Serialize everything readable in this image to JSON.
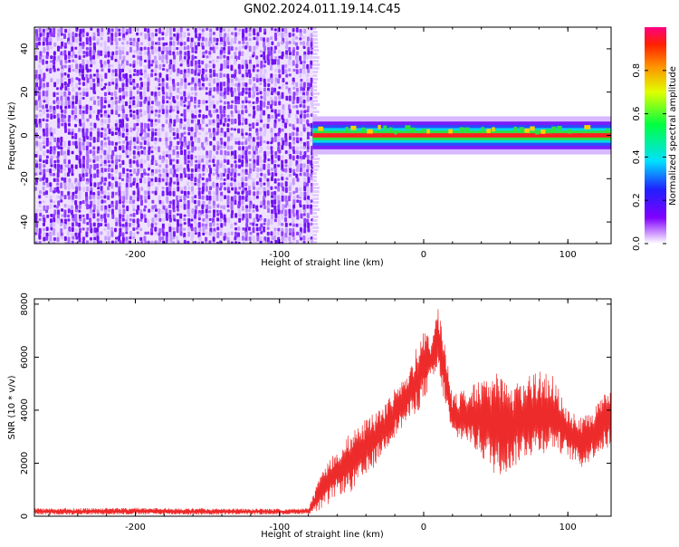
{
  "title": "GN02.2024.011.19.14.C45",
  "colors": {
    "spec_bg": "#ffffff",
    "line": "#ee2b2b",
    "noise_deep": "#7a1cff",
    "noise_light": "#d7b8ff"
  },
  "colorbar": {
    "label": "Normalized spectral amplitude",
    "ticks": [
      "0.0",
      "0.2",
      "0.4",
      "0.6",
      "0.8"
    ],
    "tick_values": [
      0,
      0.2,
      0.4,
      0.6,
      0.8
    ]
  },
  "chart_data": [
    {
      "type": "heatmap",
      "title": "GN02.2024.011.19.14.C45",
      "xlabel": "Height of straight line (km)",
      "ylabel": "Frequency (Hz)",
      "xlim": [
        -270,
        130
      ],
      "ylim": [
        -50,
        50
      ],
      "x_ticks": [
        -200,
        -100,
        0,
        100
      ],
      "x_tick_labels": [
        "-200",
        "-100",
        "0",
        "100"
      ],
      "y_ticks": [
        -40,
        -20,
        0,
        20,
        40
      ],
      "y_tick_labels": [
        "-40",
        "-20",
        "0",
        "20",
        "40"
      ],
      "noise_region_x": [
        -270,
        -77
      ],
      "signal_band": {
        "x": [
          -77,
          130
        ],
        "center_hz": 0,
        "half_width_hz": 4
      }
    },
    {
      "type": "line",
      "xlabel": "Height of straight line (km)",
      "ylabel": "SNR (10 * v/v)",
      "xlim": [
        -270,
        130
      ],
      "ylim": [
        0,
        8200
      ],
      "x_ticks": [
        -200,
        -100,
        0,
        100
      ],
      "x_tick_labels": [
        "-200",
        "-100",
        "0",
        "100"
      ],
      "y_ticks": [
        0,
        2000,
        4000,
        6000,
        8000
      ],
      "y_tick_labels": [
        "0",
        "2000",
        "4000",
        "6000",
        "8000"
      ],
      "envelope": {
        "x": [
          -270,
          -200,
          -150,
          -100,
          -80,
          -70,
          -60,
          -50,
          -40,
          -30,
          -20,
          -10,
          0,
          5,
          10,
          15,
          20,
          30,
          40,
          50,
          60,
          70,
          80,
          90,
          100,
          110,
          120,
          130
        ],
        "upper": [
          300,
          320,
          300,
          280,
          300,
          1800,
          2600,
          3200,
          3700,
          4100,
          4800,
          5600,
          7200,
          6600,
          8100,
          6400,
          4600,
          4800,
          5200,
          5400,
          5000,
          5200,
          5500,
          5300,
          4000,
          3700,
          4300,
          4900
        ],
        "lower": [
          50,
          60,
          50,
          60,
          80,
          200,
          800,
          900,
          1400,
          2200,
          3000,
          3600,
          4200,
          5100,
          5200,
          4200,
          2900,
          2800,
          2200,
          1500,
          1700,
          2200,
          2300,
          2500,
          2200,
          1800,
          2300,
          2600
        ]
      }
    }
  ]
}
